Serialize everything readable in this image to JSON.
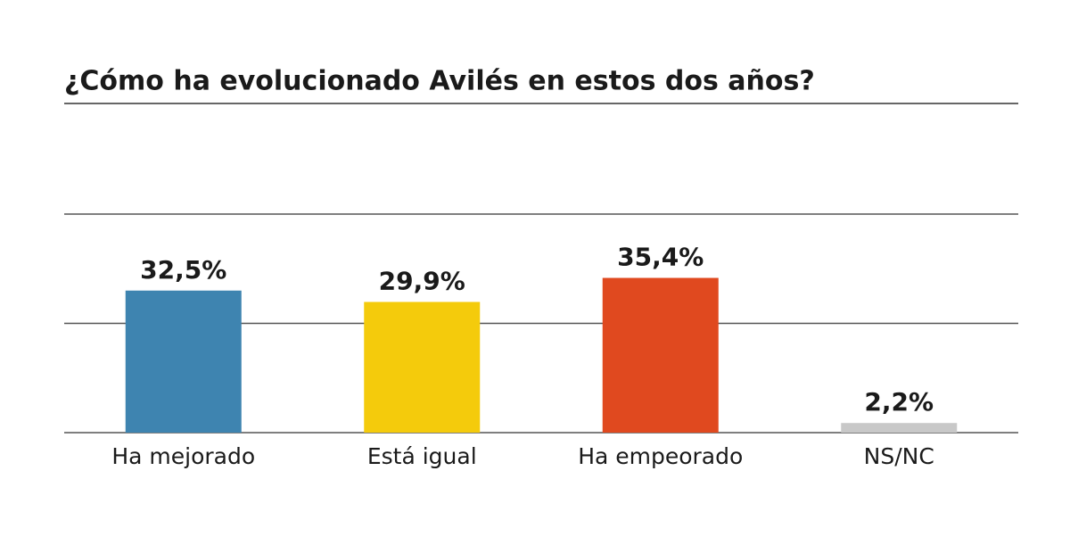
{
  "chart_data": {
    "type": "bar",
    "title": "¿Cómo ha evolucionado Avilés en estos dos años?",
    "categories": [
      "Ha mejorado",
      "Está igual",
      "Ha empeorado",
      "NS/NC"
    ],
    "values": [
      32.5,
      29.9,
      35.4,
      2.2
    ],
    "value_labels": [
      "32,5%",
      "29,9%",
      "35,4%",
      "2,2%"
    ],
    "colors": [
      "#3e84b0",
      "#f4cb0c",
      "#e0491f",
      "#c8c8c8"
    ],
    "ylim": [
      0,
      50
    ],
    "yticks": [
      0,
      25,
      50
    ],
    "grid": true
  }
}
